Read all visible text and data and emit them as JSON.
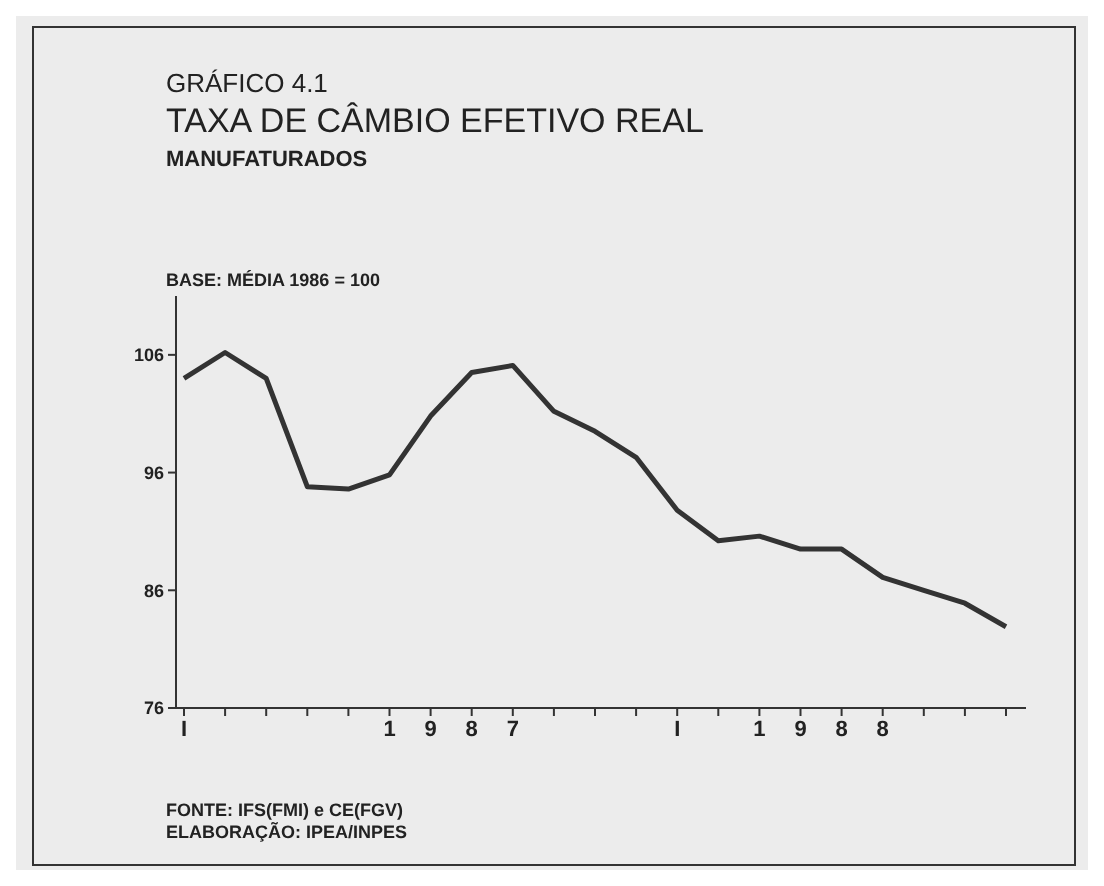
{
  "chart_data": {
    "type": "line",
    "title": "GRÁFICO 4.1",
    "subtitle": "TAXA DE CÂMBIO EFETIVO REAL",
    "ylabel": "BASE: MÉDIA 1986 = 100",
    "annotations": [
      "MANUFATURADOS",
      "FONTE: IFS(FMI) e CE(FGV)",
      "ELABORAÇÃO: IPEA/INPES"
    ],
    "categories": [
      "I",
      null,
      null,
      null,
      null,
      "1",
      "9",
      "8",
      "7",
      null,
      null,
      null,
      "I",
      null,
      "1",
      "9",
      "8",
      "8",
      null,
      null,
      null
    ],
    "series": [
      {
        "color": "#333333",
        "values": [
          104.0,
          106.2,
          104.0,
          94.8,
          94.6,
          95.8,
          100.8,
          104.5,
          105.1,
          101.2,
          99.5,
          97.3,
          92.8,
          90.2,
          90.6,
          89.5,
          89.5,
          87.1,
          86.0,
          84.9,
          82.9
        ]
      }
    ],
    "ylim": [
      76,
      111
    ],
    "yticks": [
      76,
      86,
      96,
      106
    ],
    "grid": false,
    "legend": false,
    "marker": "none",
    "line_style": "solid"
  }
}
